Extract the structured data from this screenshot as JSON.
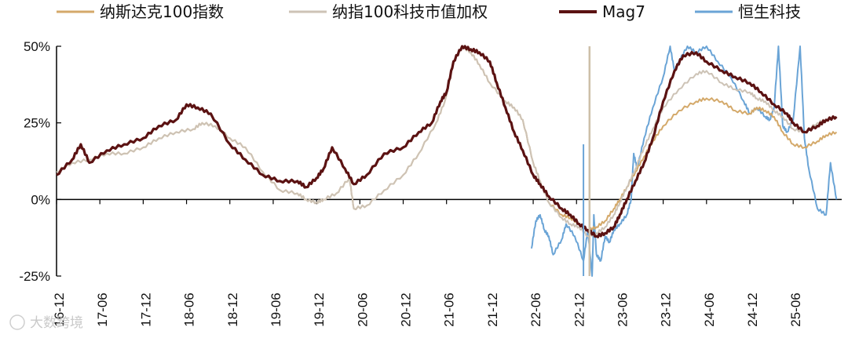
{
  "chart_data": {
    "type": "line",
    "title": "",
    "xlabel": "",
    "ylabel": "",
    "ylim": [
      -25,
      50
    ],
    "y_ticks": [
      "50%",
      "25%",
      "0%",
      "-25%"
    ],
    "y_tick_values": [
      50,
      25,
      0,
      -25
    ],
    "x_ticks": [
      "16-12",
      "17-06",
      "17-12",
      "18-06",
      "18-12",
      "19-06",
      "19-12",
      "20-06",
      "20-12",
      "21-06",
      "21-12",
      "22-06",
      "22-12",
      "23-06",
      "23-12",
      "24-06",
      "24-12",
      "25-06"
    ],
    "x_tick_years": [
      2016.92,
      2017.42,
      2017.92,
      2018.42,
      2018.92,
      2019.42,
      2019.92,
      2020.42,
      2020.92,
      2021.42,
      2021.92,
      2022.42,
      2022.92,
      2023.42,
      2023.92,
      2024.42,
      2024.92,
      2025.42
    ],
    "legend_position": "top",
    "grid": false,
    "series": [
      {
        "name": "纳斯达克100指数",
        "color": "#d4a96a",
        "x": [
          2016.92,
          2017.1,
          2017.3,
          2017.5,
          2017.7,
          2017.92,
          2018.1,
          2018.3,
          2018.5,
          2018.6,
          2018.75,
          2018.92,
          2019.1,
          2019.3,
          2019.5,
          2019.7,
          2019.8,
          2019.92,
          2020.0,
          2020.15,
          2020.3,
          2020.35,
          2020.5,
          2020.7,
          2020.92,
          2021.1,
          2021.3,
          2021.4,
          2021.5,
          2021.6,
          2021.7,
          2021.8,
          2021.92,
          2022.1,
          2022.2,
          2022.3,
          2022.42,
          2022.5,
          2022.6,
          2022.75,
          2022.85,
          2022.95,
          2023.05,
          2023.15,
          2023.25,
          2023.35,
          2023.42,
          2023.5,
          2023.6,
          2023.7,
          2023.8,
          2023.92,
          2024.1,
          2024.3,
          2024.42,
          2024.6,
          2024.75,
          2024.92,
          2025.0,
          2025.1,
          2025.2,
          2025.3,
          2025.42,
          2025.55,
          2025.7,
          2025.8,
          2025.92
        ],
        "y": [
          9,
          12,
          13,
          15,
          15,
          17,
          20,
          22,
          23,
          25,
          24,
          20,
          17,
          9,
          3,
          2,
          0,
          -1,
          0,
          2,
          7,
          -3,
          -2,
          3,
          8,
          15,
          25,
          32,
          45,
          50,
          48,
          44,
          38,
          32,
          30,
          26,
          12,
          6,
          -1,
          -5,
          -6,
          -8,
          -10,
          -9,
          -7,
          -3,
          0,
          4,
          9,
          14,
          19,
          24,
          29,
          32,
          33,
          32,
          29,
          28,
          30,
          29,
          27,
          22,
          18,
          17,
          19,
          21,
          22
        ]
      },
      {
        "name": "纳指100科技市值加权",
        "color": "#cdc3b6",
        "x": [
          2016.92,
          2017.1,
          2017.3,
          2017.5,
          2017.7,
          2017.92,
          2018.1,
          2018.3,
          2018.5,
          2018.6,
          2018.75,
          2018.92,
          2019.1,
          2019.3,
          2019.5,
          2019.7,
          2019.8,
          2019.92,
          2020.0,
          2020.15,
          2020.3,
          2020.35,
          2020.5,
          2020.7,
          2020.92,
          2021.1,
          2021.3,
          2021.4,
          2021.5,
          2021.6,
          2021.7,
          2021.8,
          2021.92,
          2022.1,
          2022.2,
          2022.3,
          2022.42,
          2022.5,
          2022.6,
          2022.75,
          2022.85,
          2022.95,
          2023.05,
          2023.15,
          2023.25,
          2023.35,
          2023.42,
          2023.5,
          2023.6,
          2023.7,
          2023.8,
          2023.92,
          2024.1,
          2024.3,
          2024.42,
          2024.6,
          2024.75,
          2024.92,
          2025.0,
          2025.1,
          2025.2,
          2025.3,
          2025.42,
          2025.55,
          2025.7,
          2025.8,
          2025.92
        ],
        "y": [
          9,
          12,
          13,
          15,
          15,
          17,
          20,
          22,
          23,
          25,
          24,
          20,
          17,
          9,
          3,
          2,
          0,
          -1,
          0,
          2,
          7,
          -3,
          -2,
          3,
          8,
          15,
          25,
          32,
          45,
          50,
          48,
          44,
          38,
          32,
          30,
          26,
          12,
          6,
          -1,
          -6,
          -8,
          -9,
          -12,
          -11,
          -9,
          -5,
          -1,
          4,
          10,
          17,
          23,
          30,
          36,
          41,
          42,
          38,
          36,
          35,
          33,
          32,
          29,
          27,
          23,
          22,
          25,
          26,
          27
        ]
      },
      {
        "name": "Mag7",
        "color": "#5b1212",
        "x": [
          2016.92,
          2017.1,
          2017.2,
          2017.3,
          2017.5,
          2017.7,
          2017.92,
          2018.1,
          2018.3,
          2018.42,
          2018.55,
          2018.7,
          2018.92,
          2019.1,
          2019.3,
          2019.5,
          2019.7,
          2019.8,
          2019.92,
          2020.0,
          2020.1,
          2020.25,
          2020.35,
          2020.5,
          2020.7,
          2020.92,
          2021.1,
          2021.25,
          2021.35,
          2021.42,
          2021.5,
          2021.6,
          2021.7,
          2021.8,
          2021.92,
          2022.0,
          2022.1,
          2022.2,
          2022.3,
          2022.42,
          2022.5,
          2022.6,
          2022.75,
          2022.85,
          2022.95,
          2023.05,
          2023.15,
          2023.25,
          2023.35,
          2023.42,
          2023.5,
          2023.6,
          2023.7,
          2023.8,
          2023.92,
          2024.05,
          2024.15,
          2024.3,
          2024.42,
          2024.6,
          2024.75,
          2024.92,
          2025.05,
          2025.2,
          2025.35,
          2025.42,
          2025.55,
          2025.7,
          2025.8,
          2025.92
        ],
        "y": [
          8,
          13,
          18,
          12,
          16,
          18,
          20,
          24,
          26,
          31,
          30,
          28,
          18,
          13,
          8,
          6,
          6,
          4,
          7,
          10,
          17,
          10,
          5,
          8,
          15,
          17,
          22,
          25,
          32,
          35,
          45,
          50,
          49,
          48,
          45,
          38,
          30,
          22,
          16,
          8,
          5,
          1,
          -3,
          -5,
          -8,
          -10,
          -12,
          -11,
          -9,
          -5,
          0,
          6,
          12,
          20,
          32,
          42,
          47,
          48,
          45,
          42,
          40,
          38,
          35,
          31,
          28,
          25,
          22,
          24,
          26,
          27
        ]
      },
      {
        "name": "恒生科技",
        "color": "#6aa4d6",
        "x": [
          2022.4,
          2022.45,
          2022.5,
          2022.55,
          2022.6,
          2022.65,
          2022.75,
          2022.8,
          2022.9,
          2023.0,
          2023.05,
          2023.1,
          2023.12,
          2023.15,
          2023.2,
          2023.25,
          2023.3,
          2023.35,
          2023.42,
          2023.5,
          2023.55,
          2023.58,
          2023.62,
          2023.7,
          2023.8,
          2023.92,
          2024.0,
          2024.05,
          2024.1,
          2024.2,
          2024.3,
          2024.42,
          2024.55,
          2024.7,
          2024.85,
          2024.92,
          2025.0,
          2025.1,
          2025.15,
          2025.2,
          2025.25,
          2025.3,
          2025.35,
          2025.42,
          2025.5,
          2025.55,
          2025.6,
          2025.7,
          2025.8,
          2025.85,
          2025.92
        ],
        "y": [
          -16,
          -7,
          -5,
          -10,
          -12,
          -18,
          -13,
          -8,
          -12,
          -20,
          -10,
          -25,
          -5,
          -18,
          -20,
          -12,
          -14,
          -10,
          -8,
          -5,
          0,
          15,
          10,
          20,
          30,
          40,
          50,
          42,
          45,
          50,
          48,
          50,
          45,
          40,
          32,
          28,
          30,
          27,
          26,
          30,
          50,
          24,
          22,
          26,
          50,
          20,
          10,
          -3,
          -5,
          12,
          0
        ]
      }
    ],
    "vertical_marker_x": 2023.07,
    "vertical_marker_color": "#cdbfa8",
    "vertical_spike": {
      "x": 2023.0,
      "y_top": 18,
      "y_bottom": -25,
      "color": "#6aa4d6"
    }
  },
  "watermark": {
    "text": "大数跨境"
  }
}
